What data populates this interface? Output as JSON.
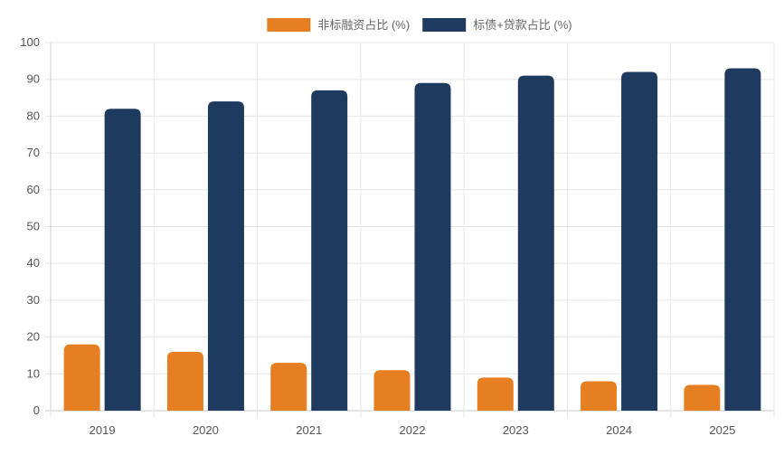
{
  "chart_data": {
    "type": "bar",
    "categories": [
      "2019",
      "2020",
      "2021",
      "2022",
      "2023",
      "2024",
      "2025"
    ],
    "series": [
      {
        "name": "非标融资占比 (%)",
        "color": "#e67e22",
        "values": [
          18,
          16,
          13,
          11,
          9,
          8,
          7
        ]
      },
      {
        "name": "标债+贷款占比 (%)",
        "color": "#1f3a5f",
        "values": [
          82,
          84,
          87,
          89,
          91,
          92,
          93
        ]
      }
    ],
    "ylim": [
      0,
      100
    ],
    "yticks": [
      0,
      10,
      20,
      30,
      40,
      50,
      60,
      70,
      80,
      90,
      100
    ],
    "grid": true,
    "legend_position": "top-center"
  }
}
